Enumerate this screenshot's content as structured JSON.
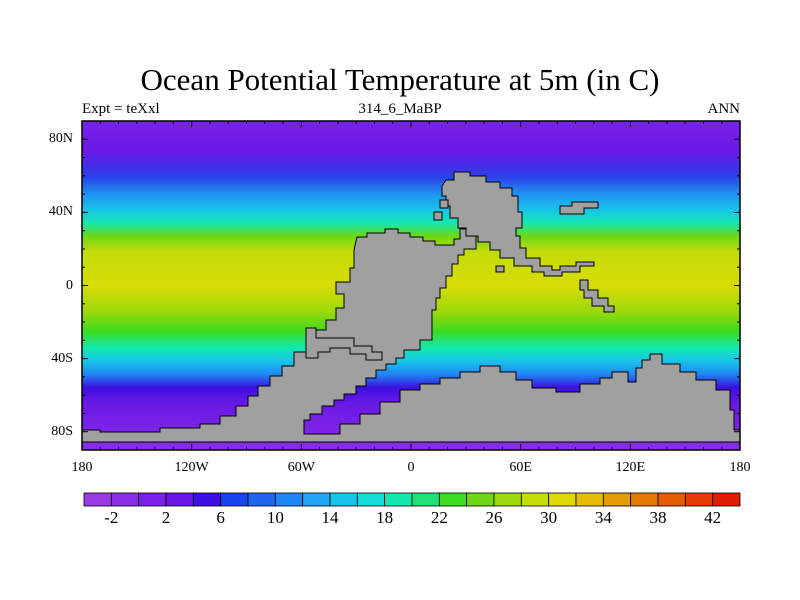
{
  "title": "Ocean Potential Temperature at 5m (in C)",
  "subtitle": {
    "left": "Expt = teXxl",
    "center": "314_6_MaBP",
    "right": "ANN"
  },
  "map": {
    "projection": "cylindrical-equidistant",
    "lon_range": [
      -180,
      180
    ],
    "lat_range": [
      -90,
      90
    ],
    "land_color": "#a0a0a0",
    "y_tick_labels": [
      "80N",
      "40N",
      "0",
      "40S",
      "80S"
    ],
    "y_tick_lats": [
      80,
      40,
      0,
      -40,
      -80
    ],
    "x_tick_labels": [
      "180",
      "120W",
      "60W",
      "0",
      "60E",
      "120E",
      "180"
    ],
    "x_tick_lons": [
      -180,
      -120,
      -60,
      0,
      60,
      120,
      180
    ]
  },
  "colorbar": {
    "labels": [
      "-2",
      "2",
      "6",
      "10",
      "14",
      "18",
      "22",
      "26",
      "30",
      "34",
      "38",
      "42"
    ],
    "colors": [
      "#9b3ae0",
      "#8a2ee6",
      "#7a22e8",
      "#6a18e6",
      "#3c10e0",
      "#1846ec",
      "#1f66f0",
      "#2086f2",
      "#20a6f2",
      "#18c4ea",
      "#14dcd8",
      "#14e8b0",
      "#20e078",
      "#3cdc20",
      "#6cd814",
      "#9cd80c",
      "#c4dc08",
      "#e0d804",
      "#e4bc04",
      "#e49c04",
      "#e47c04",
      "#e45c04",
      "#e43c04",
      "#e01c04"
    ]
  }
}
